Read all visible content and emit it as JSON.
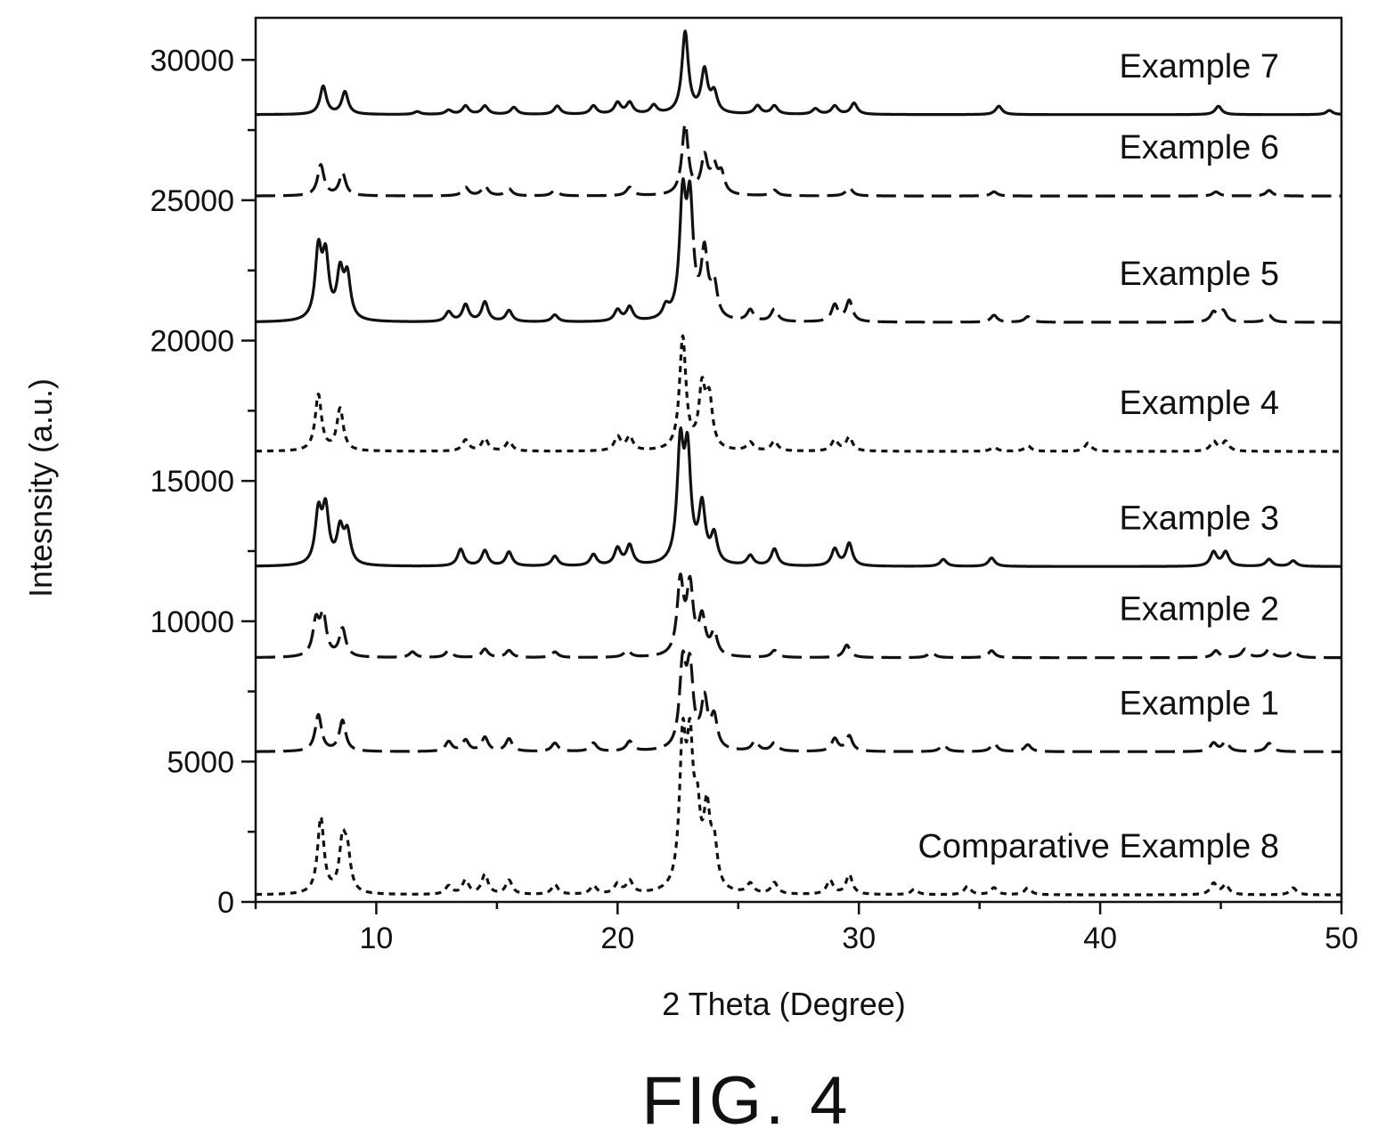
{
  "figure_caption": "FIG. 4",
  "chart_data": {
    "type": "line",
    "title": "",
    "xlabel": "2 Theta (Degree)",
    "ylabel": "Intesnsity (a.u.)",
    "xlim": [
      5,
      50
    ],
    "ylim": [
      0,
      31500
    ],
    "x_ticks": [
      10,
      20,
      30,
      40,
      50
    ],
    "y_ticks": [
      0,
      5000,
      10000,
      15000,
      20000,
      25000,
      30000
    ],
    "grid": false,
    "legend": "inline labels at right end of each trace",
    "series": [
      {
        "name": "Comparative Example 8",
        "style": "dotted",
        "baseline": 250,
        "peaks": [
          [
            7.7,
            2700
          ],
          [
            8.6,
            1700
          ],
          [
            8.8,
            1300
          ],
          [
            13.0,
            300
          ],
          [
            13.7,
            500
          ],
          [
            14.5,
            700
          ],
          [
            15.5,
            500
          ],
          [
            17.4,
            350
          ],
          [
            19.0,
            300
          ],
          [
            20.0,
            350
          ],
          [
            20.5,
            450
          ],
          [
            22.7,
            5000
          ],
          [
            23.0,
            4500
          ],
          [
            23.3,
            2300
          ],
          [
            23.7,
            2600
          ],
          [
            24.0,
            1500
          ],
          [
            25.5,
            350
          ],
          [
            26.5,
            400
          ],
          [
            28.8,
            500
          ],
          [
            29.6,
            700
          ],
          [
            32.3,
            200
          ],
          [
            34.5,
            300
          ],
          [
            35.6,
            250
          ],
          [
            37.0,
            250
          ],
          [
            44.7,
            400
          ],
          [
            45.2,
            350
          ],
          [
            48.0,
            250
          ]
        ]
      },
      {
        "name": "Example 1",
        "style": "dashed",
        "baseline": 5350,
        "peaks": [
          [
            7.6,
            1300
          ],
          [
            8.6,
            1100
          ],
          [
            13.0,
            350
          ],
          [
            13.7,
            400
          ],
          [
            14.5,
            500
          ],
          [
            15.5,
            450
          ],
          [
            17.4,
            300
          ],
          [
            19.0,
            300
          ],
          [
            20.5,
            350
          ],
          [
            22.7,
            2900
          ],
          [
            23.0,
            2700
          ],
          [
            23.6,
            1700
          ],
          [
            24.0,
            1100
          ],
          [
            25.7,
            350
          ],
          [
            26.5,
            300
          ],
          [
            29.0,
            450
          ],
          [
            29.6,
            550
          ],
          [
            33.5,
            250
          ],
          [
            35.6,
            300
          ],
          [
            37.0,
            250
          ],
          [
            44.7,
            300
          ],
          [
            45.2,
            350
          ],
          [
            47.0,
            300
          ]
        ]
      },
      {
        "name": "Example 2",
        "style": "dashed",
        "baseline": 8700,
        "peaks": [
          [
            7.5,
            1200
          ],
          [
            7.8,
            1400
          ],
          [
            8.6,
            1000
          ],
          [
            11.5,
            200
          ],
          [
            13.0,
            250
          ],
          [
            14.5,
            300
          ],
          [
            15.5,
            250
          ],
          [
            17.4,
            200
          ],
          [
            20.4,
            250
          ],
          [
            22.6,
            2600
          ],
          [
            23.0,
            2400
          ],
          [
            23.5,
            1300
          ],
          [
            24.0,
            800
          ],
          [
            26.5,
            250
          ],
          [
            29.5,
            450
          ],
          [
            33.0,
            200
          ],
          [
            35.5,
            250
          ],
          [
            44.8,
            250
          ],
          [
            46.0,
            300
          ],
          [
            47.0,
            300
          ],
          [
            48.0,
            250
          ]
        ]
      },
      {
        "name": "Example 3",
        "style": "solid",
        "baseline": 11950,
        "peaks": [
          [
            7.6,
            1800
          ],
          [
            7.9,
            1900
          ],
          [
            8.5,
            1200
          ],
          [
            8.8,
            1100
          ],
          [
            13.5,
            600
          ],
          [
            14.5,
            550
          ],
          [
            15.5,
            500
          ],
          [
            17.4,
            350
          ],
          [
            19.0,
            400
          ],
          [
            20.0,
            600
          ],
          [
            20.5,
            700
          ],
          [
            22.6,
            4000
          ],
          [
            22.9,
            3700
          ],
          [
            23.5,
            2000
          ],
          [
            24.0,
            1000
          ],
          [
            25.5,
            350
          ],
          [
            26.5,
            600
          ],
          [
            29.0,
            600
          ],
          [
            29.6,
            800
          ],
          [
            33.5,
            250
          ],
          [
            35.5,
            300
          ],
          [
            44.7,
            500
          ],
          [
            45.2,
            500
          ],
          [
            47.0,
            250
          ],
          [
            48.0,
            200
          ]
        ]
      },
      {
        "name": "Example 4",
        "style": "dotted",
        "baseline": 16050,
        "peaks": [
          [
            7.6,
            2000
          ],
          [
            8.5,
            1500
          ],
          [
            13.7,
            400
          ],
          [
            14.5,
            450
          ],
          [
            15.5,
            350
          ],
          [
            20.0,
            500
          ],
          [
            20.5,
            500
          ],
          [
            22.7,
            4000
          ],
          [
            23.5,
            2100
          ],
          [
            23.8,
            1700
          ],
          [
            25.5,
            300
          ],
          [
            26.5,
            350
          ],
          [
            29.0,
            400
          ],
          [
            29.6,
            500
          ],
          [
            35.6,
            150
          ],
          [
            37.0,
            200
          ],
          [
            39.5,
            300
          ],
          [
            44.7,
            350
          ],
          [
            45.2,
            350
          ]
        ]
      },
      {
        "name": "Example 5",
        "style": "solid-to-dashed",
        "baseline": 20650,
        "peaks": [
          [
            7.6,
            2400
          ],
          [
            7.9,
            2100
          ],
          [
            8.5,
            1600
          ],
          [
            8.8,
            1500
          ],
          [
            13.0,
            350
          ],
          [
            13.7,
            600
          ],
          [
            14.5,
            700
          ],
          [
            15.5,
            400
          ],
          [
            17.4,
            250
          ],
          [
            20.0,
            400
          ],
          [
            20.5,
            500
          ],
          [
            22.0,
            400
          ],
          [
            22.7,
            4100
          ],
          [
            23.0,
            3900
          ],
          [
            23.6,
            2300
          ],
          [
            24.0,
            1200
          ],
          [
            25.5,
            400
          ],
          [
            26.5,
            450
          ],
          [
            29.0,
            600
          ],
          [
            29.6,
            750
          ],
          [
            35.6,
            250
          ],
          [
            37.0,
            200
          ],
          [
            44.7,
            350
          ],
          [
            45.1,
            400
          ],
          [
            47.0,
            250
          ]
        ]
      },
      {
        "name": "Example 6",
        "style": "dashed",
        "baseline": 25150,
        "peaks": [
          [
            7.7,
            1100
          ],
          [
            8.6,
            800
          ],
          [
            13.7,
            300
          ],
          [
            14.5,
            350
          ],
          [
            15.5,
            250
          ],
          [
            17.4,
            200
          ],
          [
            20.5,
            300
          ],
          [
            22.8,
            2500
          ],
          [
            23.6,
            1300
          ],
          [
            24.0,
            900
          ],
          [
            24.3,
            700
          ],
          [
            26.5,
            200
          ],
          [
            29.6,
            300
          ],
          [
            35.6,
            150
          ],
          [
            44.8,
            150
          ],
          [
            47.0,
            200
          ]
        ]
      },
      {
        "name": "Example 7",
        "style": "solid",
        "baseline": 28050,
        "peaks": [
          [
            7.8,
            1000
          ],
          [
            8.7,
            800
          ],
          [
            11.7,
            100
          ],
          [
            13.0,
            150
          ],
          [
            13.7,
            300
          ],
          [
            14.5,
            300
          ],
          [
            15.7,
            250
          ],
          [
            17.5,
            300
          ],
          [
            19.0,
            300
          ],
          [
            20.0,
            400
          ],
          [
            20.5,
            400
          ],
          [
            21.5,
            300
          ],
          [
            22.8,
            2900
          ],
          [
            23.6,
            1500
          ],
          [
            24.0,
            700
          ],
          [
            25.8,
            300
          ],
          [
            26.5,
            300
          ],
          [
            28.2,
            200
          ],
          [
            29.0,
            300
          ],
          [
            29.8,
            400
          ],
          [
            35.8,
            300
          ],
          [
            44.9,
            300
          ],
          [
            49.5,
            150
          ]
        ]
      }
    ]
  }
}
